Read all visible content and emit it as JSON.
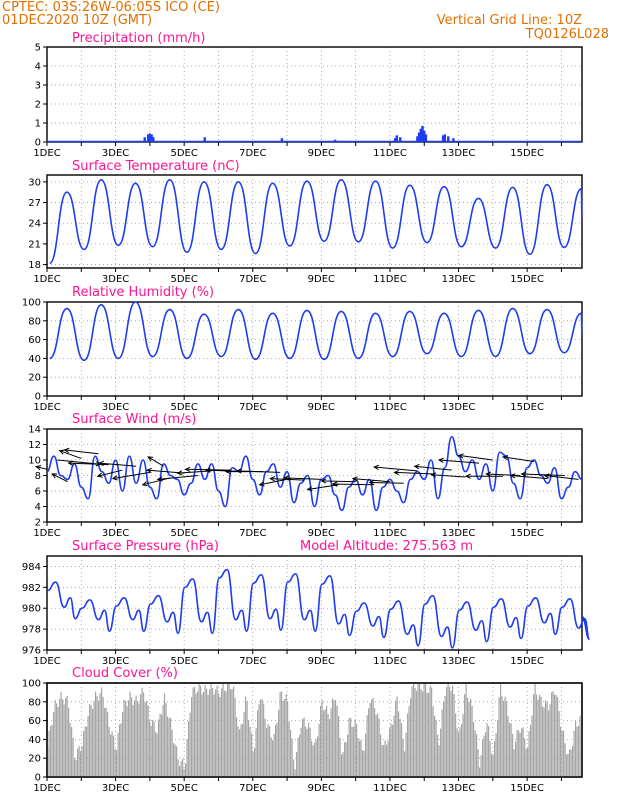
{
  "header": {
    "line1": "CPTEC:   03S:26W-06:05S   ICO (CE)",
    "line2": "01DEC2020 10Z (GMT)",
    "right1": "Vertical Grid Line: 10Z",
    "right2": "TQ0126L028"
  },
  "colors": {
    "header": "#e07000",
    "title": "#ff1493",
    "series": "#1e3cf0",
    "cloud": "#a6a6a6",
    "wind": "#000000"
  },
  "x_tick_labels": [
    "1DEC",
    "3DEC",
    "5DEC",
    "7DEC",
    "9DEC",
    "11DEC",
    "13DEC",
    "15DEC"
  ],
  "chart_data": [
    {
      "id": "precip",
      "type": "bar",
      "title": "Precipitation (mm/h)",
      "ylim": [
        0,
        5
      ],
      "yticks": [
        0,
        1,
        2,
        3,
        4,
        5
      ],
      "x_range_days": [
        1,
        16.6
      ],
      "bars": [
        [
          3.85,
          0.25
        ],
        [
          3.95,
          0.4
        ],
        [
          4.0,
          0.45
        ],
        [
          4.05,
          0.4
        ],
        [
          4.1,
          0.25
        ],
        [
          5.6,
          0.25
        ],
        [
          7.85,
          0.2
        ],
        [
          9.4,
          0.12
        ],
        [
          11.15,
          0.2
        ],
        [
          11.2,
          0.35
        ],
        [
          11.3,
          0.25
        ],
        [
          11.8,
          0.3
        ],
        [
          11.85,
          0.5
        ],
        [
          11.9,
          0.7
        ],
        [
          11.95,
          0.85
        ],
        [
          12.0,
          0.6
        ],
        [
          12.05,
          0.4
        ],
        [
          12.55,
          0.35
        ],
        [
          12.6,
          0.4
        ],
        [
          12.7,
          0.3
        ],
        [
          12.85,
          0.2
        ]
      ]
    },
    {
      "id": "temp",
      "type": "line",
      "title": "Surface Temperature (nC)",
      "ylim": [
        17.5,
        31
      ],
      "yticks": [
        18,
        21,
        24,
        27,
        30
      ],
      "x_range_days": [
        1,
        16.6
      ],
      "daily_max": [
        28.5,
        30.3,
        29.8,
        30.3,
        30.0,
        30.0,
        29.8,
        30.1,
        30.3,
        30.1,
        29.5,
        29.3,
        27.6,
        29.2,
        29.6,
        29.0
      ],
      "daily_min": [
        18.2,
        20.2,
        20.8,
        20.6,
        19.8,
        20.2,
        19.6,
        20.7,
        21.4,
        21.3,
        20.4,
        21.2,
        20.6,
        20.4,
        19.5,
        20.5
      ]
    },
    {
      "id": "rh",
      "type": "line",
      "title": "Relative Humidity (%)",
      "ylim": [
        0,
        100
      ],
      "yticks": [
        0,
        20,
        40,
        60,
        80,
        100
      ],
      "x_range_days": [
        1,
        16.6
      ],
      "daily_max": [
        93,
        97,
        100,
        92,
        87,
        92,
        88,
        91,
        90,
        88,
        90,
        88,
        91,
        93,
        92,
        88
      ],
      "daily_min": [
        40,
        38,
        40,
        42,
        40,
        42,
        39,
        40,
        39,
        40,
        42,
        45,
        42,
        42,
        45,
        46
      ]
    },
    {
      "id": "wind",
      "type": "line",
      "title": "Surface Wind (m/s)",
      "ylim": [
        2,
        14
      ],
      "yticks": [
        2,
        4,
        6,
        8,
        10,
        12,
        14
      ],
      "x_range_days": [
        1,
        16.6
      ],
      "speed": [
        [
          1.0,
          8.5
        ],
        [
          1.2,
          10.5
        ],
        [
          1.4,
          8.0
        ],
        [
          1.6,
          7.5
        ],
        [
          1.8,
          9.5
        ],
        [
          2.0,
          6.5
        ],
        [
          2.2,
          5.0
        ],
        [
          2.4,
          10.5
        ],
        [
          2.6,
          8.5
        ],
        [
          2.8,
          7.0
        ],
        [
          3.0,
          10.0
        ],
        [
          3.2,
          6.0
        ],
        [
          3.4,
          10.5
        ],
        [
          3.6,
          7.0
        ],
        [
          3.8,
          10.0
        ],
        [
          4.0,
          6.5
        ],
        [
          4.2,
          5.0
        ],
        [
          4.4,
          9.5
        ],
        [
          4.6,
          8.0
        ],
        [
          4.8,
          7.5
        ],
        [
          5.0,
          5.5
        ],
        [
          5.2,
          7.0
        ],
        [
          5.4,
          9.5
        ],
        [
          5.6,
          7.5
        ],
        [
          5.8,
          9.5
        ],
        [
          6.0,
          6.0
        ],
        [
          6.2,
          4.0
        ],
        [
          6.4,
          9.0
        ],
        [
          6.6,
          8.5
        ],
        [
          6.8,
          10.5
        ],
        [
          7.0,
          7.5
        ],
        [
          7.2,
          5.5
        ],
        [
          7.4,
          8.5
        ],
        [
          7.6,
          9.5
        ],
        [
          7.8,
          6.5
        ],
        [
          8.0,
          8.5
        ],
        [
          8.2,
          4.5
        ],
        [
          8.4,
          7.0
        ],
        [
          8.6,
          8.0
        ],
        [
          8.8,
          4.0
        ],
        [
          9.0,
          7.5
        ],
        [
          9.2,
          8.0
        ],
        [
          9.4,
          5.5
        ],
        [
          9.6,
          3.5
        ],
        [
          9.8,
          6.5
        ],
        [
          10.0,
          7.5
        ],
        [
          10.2,
          5.5
        ],
        [
          10.4,
          7.5
        ],
        [
          10.6,
          3.5
        ],
        [
          10.8,
          6.5
        ],
        [
          11.0,
          7.5
        ],
        [
          11.2,
          6.0
        ],
        [
          11.4,
          4.5
        ],
        [
          11.6,
          7.5
        ],
        [
          11.8,
          8.5
        ],
        [
          12.0,
          7.5
        ],
        [
          12.2,
          10.0
        ],
        [
          12.4,
          5.0
        ],
        [
          12.6,
          9.0
        ],
        [
          12.8,
          13.0
        ],
        [
          13.0,
          10.5
        ],
        [
          13.2,
          8.5
        ],
        [
          13.4,
          10.0
        ],
        [
          13.6,
          7.5
        ],
        [
          13.8,
          9.5
        ],
        [
          14.0,
          6.0
        ],
        [
          14.2,
          11.0
        ],
        [
          14.4,
          10.5
        ],
        [
          14.6,
          7.0
        ],
        [
          14.8,
          5.0
        ],
        [
          15.0,
          9.0
        ],
        [
          15.2,
          10.0
        ],
        [
          15.4,
          8.0
        ],
        [
          15.6,
          7.0
        ],
        [
          15.8,
          9.0
        ],
        [
          16.0,
          5.0
        ],
        [
          16.2,
          6.5
        ],
        [
          16.4,
          8.5
        ],
        [
          16.6,
          7.5
        ]
      ],
      "vectors": [
        [
          1.0,
          8.8,
          -0.35,
          0.35
        ],
        [
          1.3,
          10.0,
          1.4,
          -0.55
        ],
        [
          1.6,
          7.2,
          -0.5,
          1.0
        ],
        [
          2.0,
          10.2,
          -0.7,
          1.0
        ],
        [
          2.5,
          10.8,
          -1.1,
          0.5
        ],
        [
          2.8,
          9.4,
          -1.3,
          0.2
        ],
        [
          3.2,
          8.7,
          -0.8,
          -0.8
        ],
        [
          3.6,
          9.2,
          -1.2,
          0.4
        ],
        [
          4.0,
          8.4,
          -1.2,
          -0.8
        ],
        [
          4.4,
          9.2,
          -0.5,
          1.2
        ],
        [
          4.6,
          7.7,
          -0.9,
          -0.9
        ],
        [
          5.0,
          8.3,
          -1.2,
          0.4
        ],
        [
          5.4,
          8.0,
          -1.3,
          -0.5
        ],
        [
          5.8,
          8.6,
          -1.1,
          -0.3
        ],
        [
          6.3,
          8.7,
          -1.4,
          0.1
        ],
        [
          6.8,
          8.5,
          -1.3,
          0.2
        ],
        [
          7.3,
          8.5,
          -1.2,
          0.0
        ],
        [
          7.8,
          8.4,
          -1.4,
          0.2
        ],
        [
          8.1,
          7.6,
          -1.0,
          -0.8
        ],
        [
          8.5,
          7.4,
          -1.1,
          0.2
        ],
        [
          9.0,
          7.5,
          -1.2,
          0.2
        ],
        [
          9.5,
          6.8,
          -1.0,
          -0.6
        ],
        [
          10.0,
          7.2,
          -1.1,
          0.1
        ],
        [
          10.5,
          6.8,
          -1.3,
          0.1
        ],
        [
          11.0,
          7.2,
          -1.2,
          0.4
        ],
        [
          11.4,
          7.0,
          -1.1,
          0.1
        ],
        [
          11.8,
          8.6,
          -1.4,
          0.5
        ],
        [
          12.3,
          8.2,
          -1.3,
          0.2
        ],
        [
          12.8,
          8.7,
          -1.2,
          0.5
        ],
        [
          13.2,
          7.8,
          -1.1,
          0.3
        ],
        [
          13.6,
          9.6,
          -1.3,
          0.4
        ],
        [
          14.0,
          10.0,
          -1.1,
          0.6
        ],
        [
          14.3,
          7.9,
          -1.2,
          0.0
        ],
        [
          14.8,
          8.0,
          -1.1,
          0.2
        ],
        [
          15.2,
          9.8,
          -1.0,
          0.6
        ],
        [
          15.6,
          7.6,
          -1.2,
          0.4
        ],
        [
          16.1,
          8.0,
          -1.4,
          0.2
        ],
        [
          16.5,
          7.5,
          -1.1,
          0.5
        ]
      ]
    },
    {
      "id": "pres",
      "type": "line",
      "title": "Surface Pressure (hPa)",
      "subtitle": "Model Altitude: 275.563 m",
      "ylim": [
        976,
        985
      ],
      "yticks": [
        976,
        978,
        980,
        982,
        984
      ],
      "x_range_days": [
        1,
        16.6
      ],
      "daily_max": [
        982.5,
        980.8,
        981.0,
        981.2,
        982.8,
        983.7,
        983.2,
        983.3,
        983.1,
        980.5,
        980.7,
        981.2,
        980.6,
        980.9,
        981.0,
        980.9
      ],
      "daily_min": [
        979.0,
        977.8,
        977.8,
        977.6,
        977.6,
        977.8,
        977.9,
        977.8,
        977.4,
        977.2,
        976.4,
        976.2,
        976.8,
        977.1,
        977.5,
        977.0
      ]
    },
    {
      "id": "cloud",
      "type": "area",
      "title": "Cloud Cover (%)",
      "ylim": [
        0,
        100
      ],
      "yticks": [
        0,
        20,
        40,
        60,
        80,
        100
      ],
      "x_range_days": [
        1,
        16.6
      ],
      "levels": [
        [
          1.0,
          35
        ],
        [
          1.2,
          75
        ],
        [
          1.4,
          85
        ],
        [
          1.6,
          80
        ],
        [
          1.8,
          20
        ],
        [
          2.0,
          35
        ],
        [
          2.2,
          70
        ],
        [
          2.4,
          85
        ],
        [
          2.6,
          90
        ],
        [
          2.8,
          55
        ],
        [
          3.0,
          30
        ],
        [
          3.2,
          75
        ],
        [
          3.4,
          85
        ],
        [
          3.6,
          80
        ],
        [
          3.8,
          92
        ],
        [
          4.0,
          60
        ],
        [
          4.2,
          50
        ],
        [
          4.4,
          85
        ],
        [
          4.6,
          55
        ],
        [
          4.8,
          20
        ],
        [
          5.0,
          10
        ],
        [
          5.2,
          90
        ],
        [
          5.4,
          95
        ],
        [
          5.6,
          92
        ],
        [
          5.8,
          95
        ],
        [
          6.0,
          90
        ],
        [
          6.2,
          96
        ],
        [
          6.4,
          98
        ],
        [
          6.6,
          45
        ],
        [
          6.8,
          85
        ],
        [
          7.0,
          25
        ],
        [
          7.2,
          90
        ],
        [
          7.4,
          55
        ],
        [
          7.6,
          40
        ],
        [
          7.8,
          90
        ],
        [
          8.0,
          80
        ],
        [
          8.2,
          10
        ],
        [
          8.4,
          60
        ],
        [
          8.6,
          55
        ],
        [
          8.8,
          30
        ],
        [
          9.0,
          80
        ],
        [
          9.2,
          65
        ],
        [
          9.4,
          88
        ],
        [
          9.6,
          20
        ],
        [
          9.8,
          60
        ],
        [
          10.0,
          55
        ],
        [
          10.2,
          25
        ],
        [
          10.4,
          85
        ],
        [
          10.6,
          70
        ],
        [
          10.8,
          30
        ],
        [
          11.0,
          50
        ],
        [
          11.2,
          85
        ],
        [
          11.4,
          30
        ],
        [
          11.6,
          95
        ],
        [
          11.8,
          98
        ],
        [
          12.0,
          95
        ],
        [
          12.2,
          92
        ],
        [
          12.4,
          35
        ],
        [
          12.6,
          95
        ],
        [
          12.8,
          98
        ],
        [
          13.0,
          40
        ],
        [
          13.2,
          95
        ],
        [
          13.4,
          70
        ],
        [
          13.6,
          15
        ],
        [
          13.8,
          60
        ],
        [
          14.0,
          20
        ],
        [
          14.2,
          95
        ],
        [
          14.4,
          75
        ],
        [
          14.6,
          35
        ],
        [
          14.8,
          55
        ],
        [
          15.0,
          30
        ],
        [
          15.2,
          95
        ],
        [
          15.4,
          80
        ],
        [
          15.6,
          75
        ],
        [
          15.8,
          95
        ],
        [
          16.0,
          50
        ],
        [
          16.2,
          20
        ],
        [
          16.4,
          55
        ],
        [
          16.6,
          65
        ]
      ]
    }
  ]
}
